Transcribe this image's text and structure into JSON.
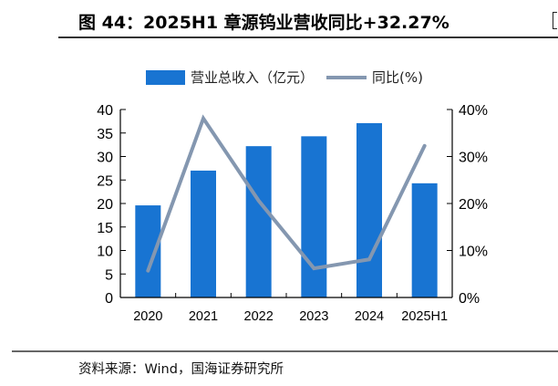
{
  "header": {
    "title": "图 44：2025H1 章源钨业营收同比+32.27%"
  },
  "footer": {
    "source": "资料来源：Wind，国海证券研究所"
  },
  "colors": {
    "bar": "#1874D2",
    "line": "#8497B0",
    "axis": "#000000"
  },
  "legend": {
    "bar_label": "营业总收入（亿元）",
    "line_label": "同比(%)"
  },
  "chart_data": {
    "type": "bar+line",
    "title": "2025H1 章源钨业营收同比+32.27%",
    "categories": [
      "2020",
      "2021",
      "2022",
      "2023",
      "2024",
      "2025H1"
    ],
    "series": [
      {
        "name": "营业总收入（亿元）",
        "type": "bar",
        "axis": "left",
        "values": [
          19.6,
          27.0,
          32.2,
          34.3,
          37.1,
          24.3
        ]
      },
      {
        "name": "同比(%)",
        "type": "line",
        "axis": "right",
        "values": [
          5.7,
          38.1,
          20.6,
          6.2,
          8.1,
          32.27
        ]
      }
    ],
    "left_axis": {
      "ylim": [
        0,
        40
      ],
      "ticks": [
        "0",
        "5",
        "10",
        "15",
        "20",
        "25",
        "30",
        "35",
        "40"
      ]
    },
    "right_axis": {
      "ylim": [
        0,
        40
      ],
      "ticks": [
        "0%",
        "10%",
        "20%",
        "30%",
        "40%"
      ]
    },
    "xlabel": "",
    "ylabel": "",
    "grid": false,
    "legend_position": "top"
  }
}
